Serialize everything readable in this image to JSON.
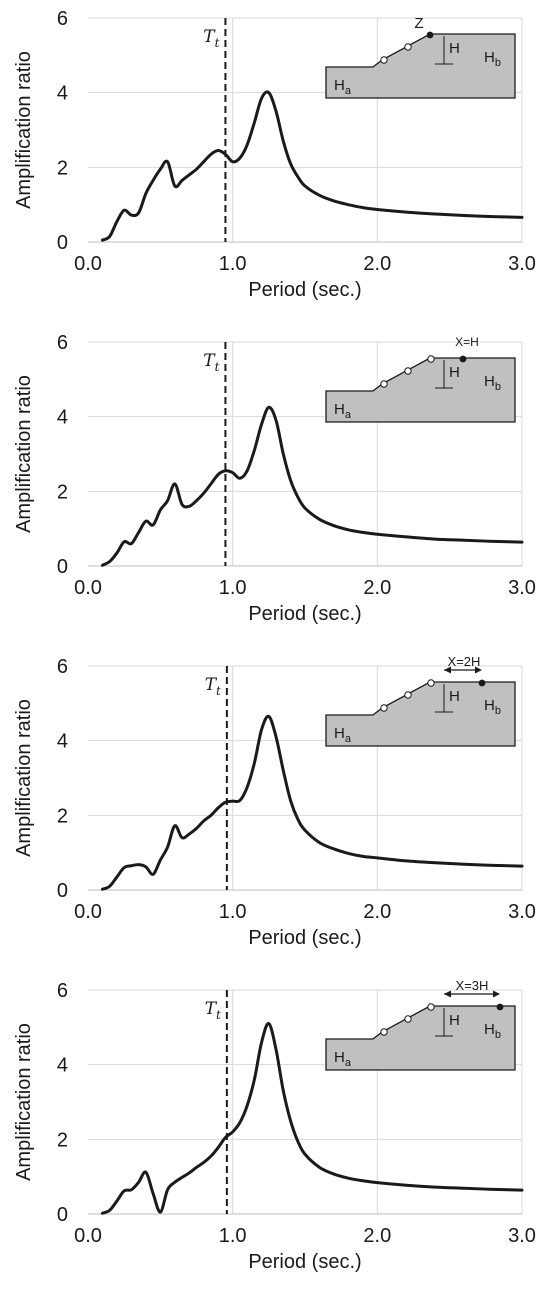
{
  "chart_data": [
    {
      "type": "line",
      "xlabel": "Period (sec.)",
      "ylabel": "Amplification ratio",
      "xlim": [
        0,
        3
      ],
      "ylim": [
        0,
        6
      ],
      "xticks": [
        "0.0",
        "1.0",
        "2.0",
        "3.0"
      ],
      "yticks": [
        "0",
        "2",
        "4",
        "6"
      ],
      "grid": true,
      "tt_label": "T",
      "tt_sub": "t",
      "tt_x": 0.95,
      "inset": {
        "position_label": "Z",
        "show_arrow": false,
        "marker": "Z",
        "ha": "H",
        "ha_sub": "a",
        "hb": "H",
        "hb_sub": "b",
        "h": "H"
      },
      "series": [
        {
          "x": [
            0.1,
            0.15,
            0.2,
            0.25,
            0.3,
            0.35,
            0.4,
            0.45,
            0.5,
            0.55,
            0.6,
            0.65,
            0.7,
            0.75,
            0.8,
            0.85,
            0.9,
            0.95,
            1.0,
            1.05,
            1.1,
            1.15,
            1.2,
            1.25,
            1.3,
            1.35,
            1.4,
            1.45,
            1.5,
            1.6,
            1.7,
            1.8,
            1.9,
            2.0,
            2.2,
            2.4,
            2.6,
            2.8,
            3.0
          ],
          "y": [
            0.05,
            0.15,
            0.55,
            0.85,
            0.72,
            0.78,
            1.3,
            1.65,
            1.95,
            2.15,
            1.5,
            1.65,
            1.8,
            1.95,
            2.15,
            2.35,
            2.45,
            2.35,
            2.15,
            2.25,
            2.6,
            3.2,
            3.85,
            4.0,
            3.5,
            2.7,
            2.1,
            1.75,
            1.5,
            1.25,
            1.1,
            1.0,
            0.92,
            0.87,
            0.8,
            0.75,
            0.71,
            0.68,
            0.66
          ]
        }
      ]
    },
    {
      "type": "line",
      "xlabel": "Period (sec.)",
      "ylabel": "Amplification ratio",
      "xlim": [
        0,
        3
      ],
      "ylim": [
        0,
        6
      ],
      "xticks": [
        "0.0",
        "1.0",
        "2.0",
        "3.0"
      ],
      "yticks": [
        "0",
        "2",
        "4",
        "6"
      ],
      "grid": true,
      "tt_label": "T",
      "tt_sub": "t",
      "tt_x": 0.95,
      "inset": {
        "position_label": "X=H",
        "show_arrow": false,
        "marker": "X=H",
        "ha": "H",
        "ha_sub": "a",
        "hb": "H",
        "hb_sub": "b",
        "h": "H"
      },
      "series": [
        {
          "x": [
            0.1,
            0.15,
            0.2,
            0.25,
            0.3,
            0.35,
            0.4,
            0.45,
            0.5,
            0.55,
            0.6,
            0.65,
            0.7,
            0.75,
            0.8,
            0.85,
            0.9,
            0.95,
            1.0,
            1.05,
            1.1,
            1.15,
            1.2,
            1.25,
            1.3,
            1.35,
            1.4,
            1.45,
            1.5,
            1.6,
            1.7,
            1.8,
            1.9,
            2.0,
            2.2,
            2.4,
            2.6,
            2.8,
            3.0
          ],
          "y": [
            0.02,
            0.12,
            0.35,
            0.65,
            0.6,
            0.9,
            1.2,
            1.1,
            1.5,
            1.75,
            2.2,
            1.65,
            1.6,
            1.75,
            1.95,
            2.2,
            2.45,
            2.55,
            2.5,
            2.35,
            2.55,
            3.1,
            3.8,
            4.25,
            3.9,
            3.0,
            2.3,
            1.85,
            1.55,
            1.25,
            1.08,
            0.97,
            0.9,
            0.85,
            0.78,
            0.72,
            0.69,
            0.66,
            0.64
          ]
        }
      ]
    },
    {
      "type": "line",
      "xlabel": "Period (sec.)",
      "ylabel": "Amplification ratio",
      "xlim": [
        0,
        3
      ],
      "ylim": [
        0,
        6
      ],
      "xticks": [
        "0.0",
        "1.0",
        "2.0",
        "3.0"
      ],
      "yticks": [
        "0",
        "2",
        "4",
        "6"
      ],
      "grid": true,
      "tt_label": "T",
      "tt_sub": "t",
      "tt_x": 0.96,
      "inset": {
        "position_label": "X=2H",
        "show_arrow": true,
        "marker": "X=2H",
        "ha": "H",
        "ha_sub": "a",
        "hb": "H",
        "hb_sub": "b",
        "h": "H"
      },
      "series": [
        {
          "x": [
            0.1,
            0.15,
            0.2,
            0.25,
            0.3,
            0.35,
            0.4,
            0.45,
            0.5,
            0.55,
            0.6,
            0.65,
            0.7,
            0.75,
            0.8,
            0.85,
            0.9,
            0.95,
            1.0,
            1.05,
            1.1,
            1.15,
            1.2,
            1.25,
            1.3,
            1.35,
            1.4,
            1.45,
            1.5,
            1.6,
            1.7,
            1.8,
            1.9,
            2.0,
            2.2,
            2.4,
            2.6,
            2.8,
            3.0
          ],
          "y": [
            0.02,
            0.1,
            0.35,
            0.6,
            0.65,
            0.68,
            0.62,
            0.42,
            0.8,
            1.15,
            1.72,
            1.4,
            1.5,
            1.65,
            1.85,
            2.0,
            2.2,
            2.35,
            2.38,
            2.4,
            2.75,
            3.4,
            4.3,
            4.65,
            4.1,
            3.2,
            2.4,
            1.9,
            1.6,
            1.27,
            1.1,
            0.98,
            0.9,
            0.86,
            0.78,
            0.73,
            0.69,
            0.66,
            0.64
          ]
        }
      ]
    },
    {
      "type": "line",
      "xlabel": "Period (sec.)",
      "ylabel": "Amplification ratio",
      "xlim": [
        0,
        3
      ],
      "ylim": [
        0,
        6
      ],
      "xticks": [
        "0.0",
        "1.0",
        "2.0",
        "3.0"
      ],
      "yticks": [
        "0",
        "2",
        "4",
        "6"
      ],
      "grid": true,
      "tt_label": "T",
      "tt_sub": "t",
      "tt_x": 0.96,
      "inset": {
        "position_label": "X=3H",
        "show_arrow": true,
        "marker": "X=3H",
        "ha": "H",
        "ha_sub": "a",
        "hb": "H",
        "hb_sub": "b",
        "h": "H"
      },
      "series": [
        {
          "x": [
            0.1,
            0.15,
            0.2,
            0.25,
            0.3,
            0.35,
            0.4,
            0.45,
            0.5,
            0.55,
            0.6,
            0.65,
            0.7,
            0.75,
            0.8,
            0.85,
            0.9,
            0.95,
            1.0,
            1.05,
            1.1,
            1.15,
            1.2,
            1.25,
            1.3,
            1.35,
            1.4,
            1.45,
            1.5,
            1.6,
            1.7,
            1.8,
            1.9,
            2.0,
            2.2,
            2.4,
            2.6,
            2.8,
            3.0
          ],
          "y": [
            0.02,
            0.1,
            0.35,
            0.62,
            0.65,
            0.85,
            1.12,
            0.55,
            0.05,
            0.65,
            0.85,
            0.98,
            1.1,
            1.25,
            1.38,
            1.55,
            1.78,
            2.05,
            2.2,
            2.45,
            2.9,
            3.6,
            4.6,
            5.1,
            4.4,
            3.3,
            2.5,
            1.95,
            1.6,
            1.25,
            1.07,
            0.96,
            0.89,
            0.84,
            0.77,
            0.72,
            0.69,
            0.66,
            0.64
          ]
        }
      ]
    }
  ]
}
